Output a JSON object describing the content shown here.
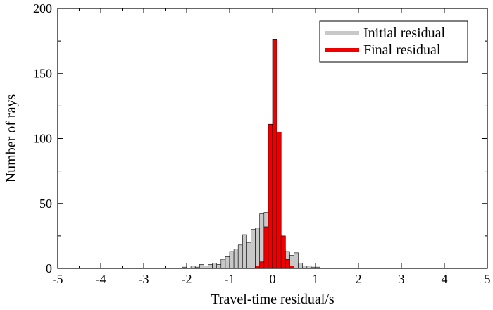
{
  "chart_data": {
    "type": "bar",
    "xlabel": "Travel-time residual/s",
    "ylabel": "Number of rays",
    "xlim": [
      -5,
      5
    ],
    "ylim": [
      0,
      200
    ],
    "xticks": [
      -5,
      -4,
      -3,
      -2,
      -1,
      0,
      1,
      2,
      3,
      4,
      5
    ],
    "yticks": [
      0,
      50,
      100,
      150,
      200
    ],
    "xtick_labels": [
      "-5",
      "-4",
      "-3",
      "-2",
      "-1",
      "0",
      "1",
      "2",
      "3",
      "4",
      "5"
    ],
    "ytick_labels": [
      "0",
      "50",
      "100",
      "150",
      "200"
    ],
    "bin_width": 0.1,
    "grid": false,
    "legend_position": "top-right",
    "series": [
      {
        "name": "Initial residual",
        "color": "#c8c8c8",
        "bins": [
          {
            "x": -2.05,
            "y": 1
          },
          {
            "x": -1.85,
            "y": 2
          },
          {
            "x": -1.75,
            "y": 1
          },
          {
            "x": -1.65,
            "y": 3
          },
          {
            "x": -1.55,
            "y": 2
          },
          {
            "x": -1.45,
            "y": 3
          },
          {
            "x": -1.35,
            "y": 4
          },
          {
            "x": -1.25,
            "y": 3
          },
          {
            "x": -1.15,
            "y": 7
          },
          {
            "x": -1.05,
            "y": 9
          },
          {
            "x": -0.95,
            "y": 13
          },
          {
            "x": -0.85,
            "y": 15
          },
          {
            "x": -0.75,
            "y": 18
          },
          {
            "x": -0.65,
            "y": 26
          },
          {
            "x": -0.55,
            "y": 20
          },
          {
            "x": -0.45,
            "y": 30
          },
          {
            "x": -0.35,
            "y": 31
          },
          {
            "x": -0.25,
            "y": 42
          },
          {
            "x": -0.15,
            "y": 43
          },
          {
            "x": -0.05,
            "y": 35
          },
          {
            "x": 0.05,
            "y": 36
          },
          {
            "x": 0.15,
            "y": 24
          },
          {
            "x": 0.25,
            "y": 14
          },
          {
            "x": 0.35,
            "y": 13
          },
          {
            "x": 0.45,
            "y": 10
          },
          {
            "x": 0.55,
            "y": 12
          },
          {
            "x": 0.65,
            "y": 4
          },
          {
            "x": 0.75,
            "y": 2
          },
          {
            "x": 0.85,
            "y": 2
          },
          {
            "x": 0.95,
            "y": 1
          },
          {
            "x": 1.05,
            "y": 1
          }
        ]
      },
      {
        "name": "Final residual",
        "color": "#ee0000",
        "bins": [
          {
            "x": -0.35,
            "y": 2
          },
          {
            "x": -0.25,
            "y": 5
          },
          {
            "x": -0.15,
            "y": 32
          },
          {
            "x": -0.05,
            "y": 111
          },
          {
            "x": 0.05,
            "y": 176
          },
          {
            "x": 0.15,
            "y": 105
          },
          {
            "x": 0.25,
            "y": 25
          },
          {
            "x": 0.35,
            "y": 7
          },
          {
            "x": 0.45,
            "y": 2
          }
        ]
      }
    ]
  }
}
